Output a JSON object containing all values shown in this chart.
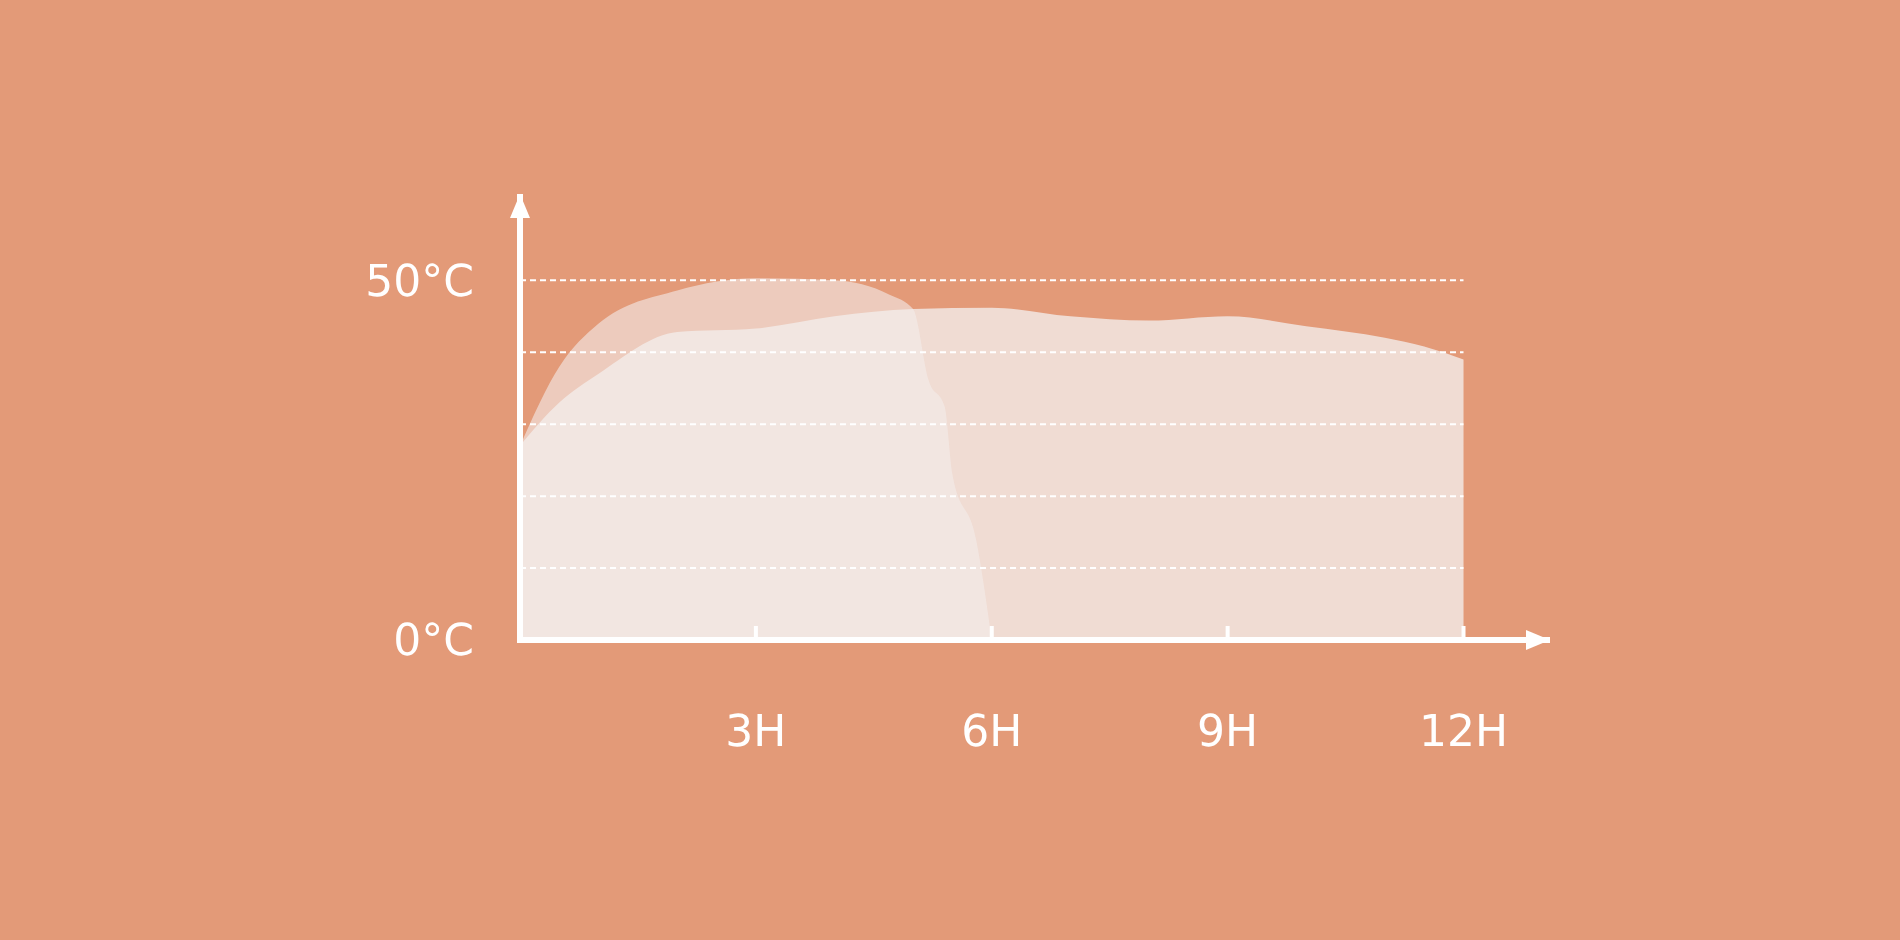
{
  "chart_data": {
    "type": "area",
    "xlim": [
      0,
      13.1
    ],
    "ylim": [
      0,
      62
    ],
    "xticks": [
      {
        "value": 3,
        "label": "3H"
      },
      {
        "value": 6,
        "label": "6H"
      },
      {
        "value": 9,
        "label": "9H"
      },
      {
        "value": 12,
        "label": "12H"
      }
    ],
    "yticks": [
      {
        "value": 0,
        "label": "0°C"
      },
      {
        "value": 10,
        "label": null
      },
      {
        "value": 20,
        "label": null
      },
      {
        "value": 30,
        "label": null
      },
      {
        "value": 40,
        "label": null
      },
      {
        "value": 50,
        "label": "50°C"
      }
    ],
    "grid": "y",
    "series": [
      {
        "color": "#f4f2f1",
        "x": [
          0,
          0.5,
          1,
          2,
          3,
          4,
          5,
          6,
          7,
          8,
          9,
          10,
          11,
          11.5,
          12
        ],
        "values": [
          27,
          33,
          37,
          42.8,
          43.3,
          45,
          46,
          46.2,
          45,
          44.4,
          45,
          43.6,
          42,
          40.8,
          39
        ]
      },
      {
        "color": "#f4eceb",
        "x": [
          0,
          0.5,
          1,
          2,
          3,
          4,
          4.7,
          5,
          5.2,
          5.4,
          5.5,
          5.8,
          6
        ],
        "values": [
          27,
          38,
          44,
          48.6,
          50.3,
          50,
          48,
          46,
          36,
          32.5,
          23,
          14,
          0
        ]
      }
    ]
  }
}
